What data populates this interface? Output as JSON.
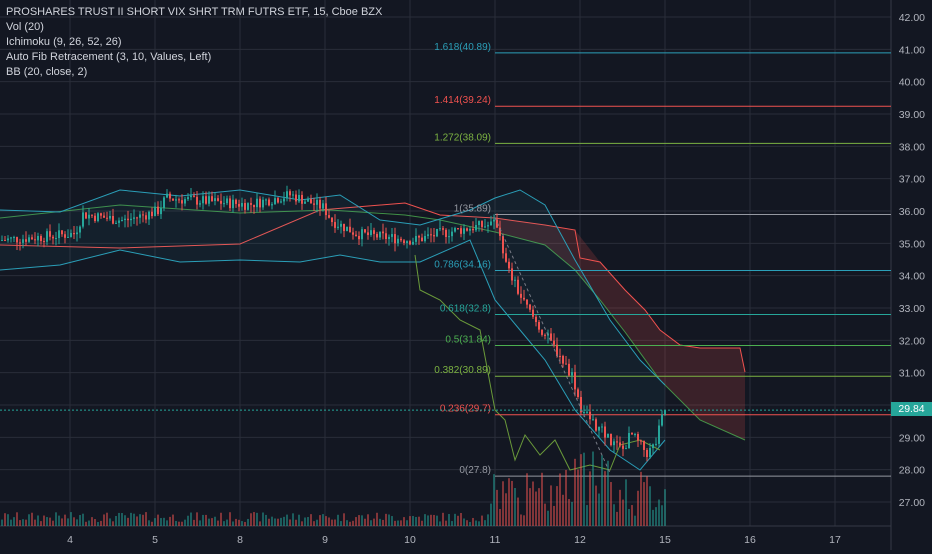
{
  "legend": {
    "title": "PROSHARES TRUST II SHORT VIX SHRT TRM FUTRS ETF, 15, Cboe BZX",
    "volume": "Vol (20)",
    "ichimoku": "Ichimoku (9, 26, 52, 26)",
    "fib": "Auto Fib Retracement (3, 10, Values, Left)",
    "bb": "BB (20, close, 2)"
  },
  "last_price": "29.84",
  "colors": {
    "background": "#131722",
    "grid": "#2a2e39",
    "up": "#26a69a",
    "down": "#ef5350",
    "axis_text": "#b2b5be",
    "bb": "#2b9fb8",
    "cloud_line_red": "#f0524f",
    "cloud_line_green": "#4caf50",
    "lagging": "#6a9a3a"
  },
  "chart_data": {
    "type": "candlestick",
    "x_ticks": [
      "4",
      "5",
      "8",
      "9",
      "10",
      "11",
      "12",
      "15",
      "16",
      "17"
    ],
    "y_ticks": [
      "42.00",
      "41.00",
      "40.00",
      "39.00",
      "38.00",
      "37.00",
      "36.00",
      "35.00",
      "34.00",
      "33.00",
      "32.00",
      "31.00",
      "30.00",
      "29.00",
      "28.00",
      "27.00"
    ],
    "ylim": [
      26.2,
      42.4
    ],
    "fib_levels": [
      {
        "label": "1.618(40.89)",
        "value": 40.89,
        "color": "#2b9fb8"
      },
      {
        "label": "1.414(39.24)",
        "value": 39.24,
        "color": "#f0524f"
      },
      {
        "label": "1.272(38.09)",
        "value": 38.09,
        "color": "#7cb342"
      },
      {
        "label": "1(35.89)",
        "value": 35.89,
        "color": "#9598a1"
      },
      {
        "label": "0.786(34.16)",
        "value": 34.16,
        "color": "#2b9fb8"
      },
      {
        "label": "0.618(32.8)",
        "value": 32.8,
        "color": "#26a69a"
      },
      {
        "label": "0.5(31.84)",
        "value": 31.84,
        "color": "#4caf50"
      },
      {
        "label": "0.382(30.89)",
        "value": 30.89,
        "color": "#7cb342"
      },
      {
        "label": "0.236(29.7)",
        "value": 29.7,
        "color": "#f0524f"
      },
      {
        "label": "0(27.8)",
        "value": 27.8,
        "color": "#9598a1"
      }
    ],
    "close_series": [
      {
        "t": 0,
        "v": 35.1
      },
      {
        "t": 0.5,
        "v": 35.2
      },
      {
        "t": 0.9,
        "v": 35.3
      },
      {
        "t": 1.0,
        "v": 35.9
      },
      {
        "t": 1.5,
        "v": 35.7
      },
      {
        "t": 1.9,
        "v": 36.0
      },
      {
        "t": 2.0,
        "v": 36.4
      },
      {
        "t": 2.5,
        "v": 36.3
      },
      {
        "t": 3.0,
        "v": 36.2
      },
      {
        "t": 3.5,
        "v": 36.5
      },
      {
        "t": 3.9,
        "v": 36.1
      },
      {
        "t": 4.0,
        "v": 35.7
      },
      {
        "t": 4.3,
        "v": 35.3
      },
      {
        "t": 4.6,
        "v": 35.2
      },
      {
        "t": 5.0,
        "v": 35.1
      },
      {
        "t": 5.3,
        "v": 35.3
      },
      {
        "t": 5.7,
        "v": 35.5
      },
      {
        "t": 6.0,
        "v": 35.6
      },
      {
        "t": 6.1,
        "v": 34.3
      },
      {
        "t": 6.3,
        "v": 33.2
      },
      {
        "t": 6.5,
        "v": 32.4
      },
      {
        "t": 6.7,
        "v": 31.7
      },
      {
        "t": 6.9,
        "v": 30.9
      },
      {
        "t": 7.0,
        "v": 29.9
      },
      {
        "t": 7.2,
        "v": 29.3
      },
      {
        "t": 7.4,
        "v": 28.8
      },
      {
        "t": 7.5,
        "v": 28.6
      },
      {
        "t": 7.6,
        "v": 29.1
      },
      {
        "t": 7.8,
        "v": 28.5
      },
      {
        "t": 7.9,
        "v": 28.8
      },
      {
        "t": 8.0,
        "v": 29.84
      }
    ]
  }
}
